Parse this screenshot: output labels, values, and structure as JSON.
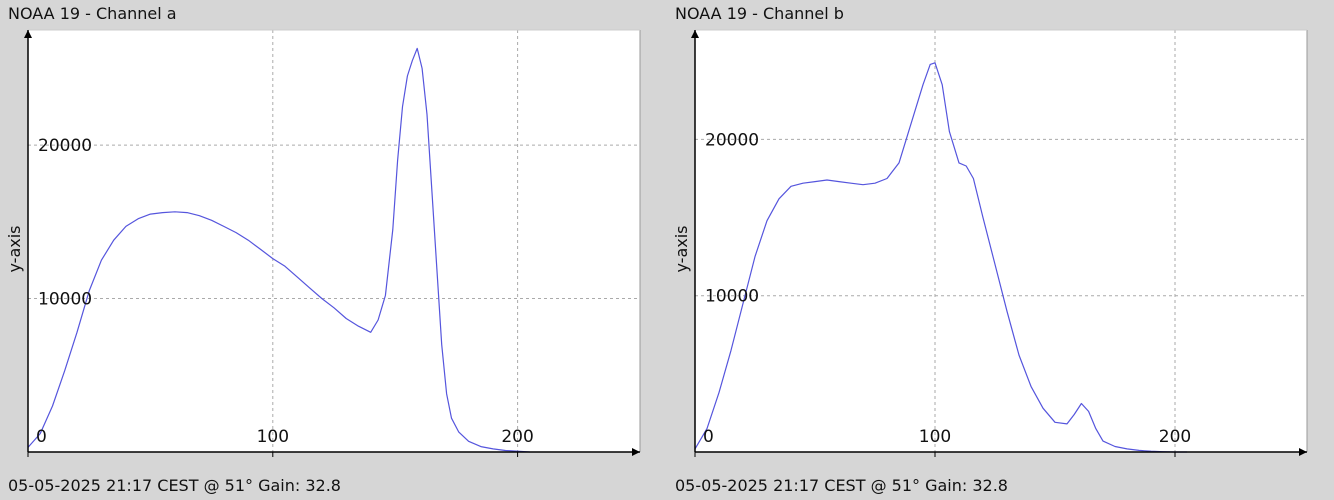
{
  "chart_data": [
    {
      "type": "line",
      "title": "NOAA 19 - Channel a",
      "footer": "05-05-2025 21:17 CEST @ 51° Gain: 32.8",
      "ylabel": "y-axis",
      "xlim": [
        0,
        250
      ],
      "ylim": [
        0,
        27500
      ],
      "xticks": [
        0,
        100,
        200
      ],
      "yticks": [
        10000,
        20000
      ],
      "grid": true,
      "color": "#5555dd",
      "series": [
        {
          "x": [
            0,
            5,
            10,
            15,
            20,
            25,
            30,
            35,
            40,
            45,
            50,
            55,
            60,
            65,
            70,
            75,
            80,
            85,
            90,
            95,
            100,
            105,
            110,
            115,
            120,
            125,
            130,
            135,
            140,
            143,
            146,
            149,
            151,
            153,
            155,
            157,
            159,
            161,
            163,
            165,
            167,
            169,
            171,
            173,
            176,
            180,
            185,
            190,
            195,
            200,
            205
          ],
          "y": [
            300,
            1200,
            3000,
            5300,
            7800,
            10500,
            12500,
            13800,
            14700,
            15200,
            15500,
            15600,
            15650,
            15600,
            15400,
            15100,
            14700,
            14300,
            13800,
            13200,
            12600,
            12100,
            11400,
            10700,
            10000,
            9400,
            8700,
            8200,
            7800,
            8600,
            10200,
            14500,
            19000,
            22500,
            24500,
            25500,
            26300,
            25000,
            22000,
            17000,
            12000,
            7000,
            3800,
            2200,
            1300,
            700,
            350,
            200,
            100,
            50,
            0
          ]
        }
      ]
    },
    {
      "type": "line",
      "title": "NOAA 19 - Channel b",
      "footer": "05-05-2025 21:17 CEST @ 51° Gain: 32.8",
      "ylabel": "y-axis",
      "xlim": [
        0,
        255
      ],
      "ylim": [
        0,
        27000
      ],
      "xticks": [
        0,
        100,
        200
      ],
      "yticks": [
        10000,
        20000
      ],
      "grid": true,
      "color": "#5555dd",
      "series": [
        {
          "x": [
            0,
            5,
            10,
            15,
            20,
            25,
            30,
            35,
            40,
            45,
            50,
            55,
            60,
            65,
            70,
            75,
            80,
            85,
            90,
            95,
            98,
            100,
            103,
            106,
            110,
            113,
            116,
            120,
            125,
            130,
            135,
            140,
            145,
            150,
            155,
            158,
            161,
            164,
            167,
            170,
            175,
            180,
            185,
            190,
            195,
            200,
            205
          ],
          "y": [
            200,
            1500,
            3800,
            6500,
            9500,
            12500,
            14800,
            16200,
            17000,
            17200,
            17300,
            17400,
            17300,
            17200,
            17100,
            17200,
            17500,
            18500,
            21000,
            23500,
            24800,
            24900,
            23500,
            20500,
            18500,
            18300,
            17500,
            15000,
            12000,
            9000,
            6200,
            4200,
            2800,
            1900,
            1800,
            2400,
            3100,
            2600,
            1500,
            700,
            350,
            200,
            100,
            50,
            20,
            0,
            0
          ]
        }
      ]
    }
  ]
}
